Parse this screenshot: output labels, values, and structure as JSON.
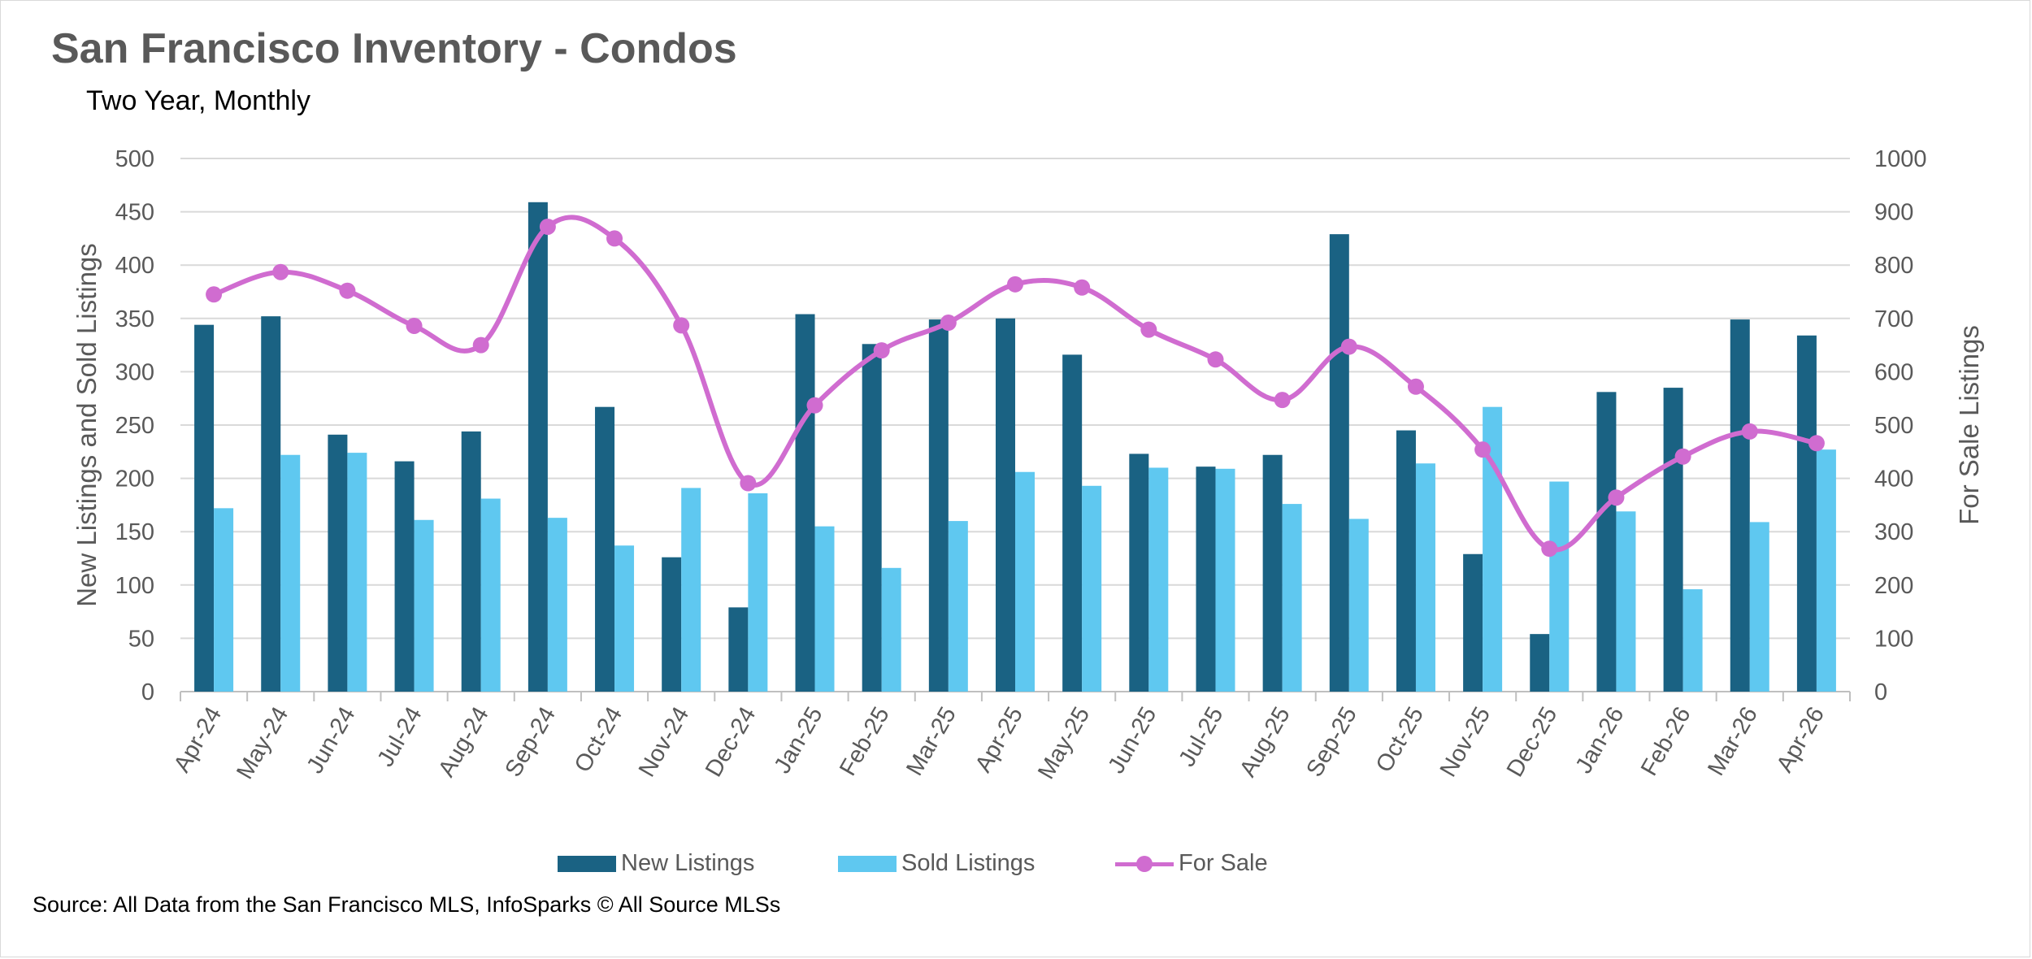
{
  "title": "San Francisco Inventory - Condos",
  "subtitle": "Two Year, Monthly",
  "source": "Source: All Data from the San Francisco MLS, InfoSparks © All Source MLSs",
  "colors": {
    "new_listings": "#1a6283",
    "sold_listings": "#5fc8f0",
    "for_sale": "#d06cd0",
    "grid": "#d9d9d9",
    "text": "#595959"
  },
  "chart_data": {
    "type": "bar",
    "title": "San Francisco Inventory - Condos",
    "subtitle": "Two Year, Monthly",
    "categories": [
      "Apr-24",
      "May-24",
      "Jun-24",
      "Jul-24",
      "Aug-24",
      "Sep-24",
      "Oct-24",
      "Nov-24",
      "Dec-24",
      "Jan-25",
      "Feb-25",
      "Mar-25",
      "Apr-25",
      "May-25",
      "Jun-25",
      "Jul-25",
      "Aug-25",
      "Sep-25",
      "Oct-25",
      "Nov-25",
      "Dec-25",
      "Jan-26",
      "Feb-26",
      "Mar-26",
      "Apr-26"
    ],
    "ylabel": "New Listings and Sold Listings",
    "y2label": "For Sale Listings",
    "ylim": [
      0,
      500
    ],
    "y2lim": [
      0,
      1000
    ],
    "yticks": [
      "0",
      "50",
      "100",
      "150",
      "200",
      "250",
      "300",
      "350",
      "400",
      "450",
      "500"
    ],
    "y2ticks": [
      "0",
      "100",
      "200",
      "300",
      "400",
      "500",
      "600",
      "700",
      "800",
      "900",
      "1000"
    ],
    "grid": true,
    "legend_position": "bottom",
    "series": [
      {
        "name": "New Listings",
        "type": "bar",
        "axis": "left",
        "values": [
          344,
          352,
          241,
          216,
          244,
          459,
          267,
          126,
          79,
          354,
          326,
          349,
          350,
          316,
          223,
          211,
          222,
          429,
          245,
          129,
          54,
          281,
          285,
          349,
          334
        ]
      },
      {
        "name": "Sold Listings",
        "type": "bar",
        "axis": "left",
        "values": [
          172,
          222,
          224,
          161,
          181,
          163,
          137,
          191,
          186,
          155,
          116,
          160,
          206,
          193,
          210,
          209,
          176,
          162,
          214,
          267,
          197,
          169,
          96,
          159,
          227
        ]
      },
      {
        "name": "For Sale",
        "type": "line",
        "axis": "right",
        "smooth": true,
        "markers": true,
        "values": [
          745,
          787,
          752,
          686,
          650,
          872,
          850,
          687,
          391,
          537,
          640,
          692,
          764,
          758,
          679,
          623,
          547,
          647,
          572,
          454,
          268,
          364,
          441,
          488,
          466
        ]
      }
    ]
  }
}
